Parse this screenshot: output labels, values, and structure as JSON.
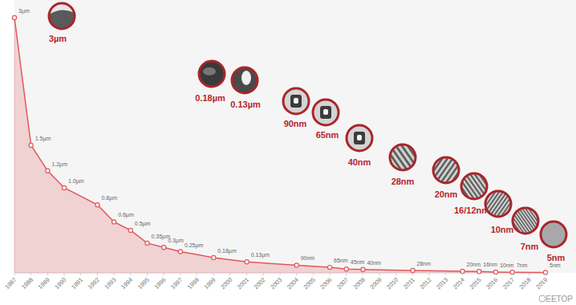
{
  "chart_data": {
    "type": "line",
    "x": [
      1987,
      1988,
      1989,
      1990,
      1992,
      1993,
      1994,
      1995,
      1996,
      1997,
      1999,
      2001,
      2004,
      2006,
      2007,
      2008,
      2011,
      2014,
      2015,
      2016,
      2017,
      2019
    ],
    "values": [
      3000,
      1500,
      1200,
      1000,
      800,
      600,
      500,
      350,
      300,
      250,
      180,
      130,
      90,
      65,
      45,
      40,
      28,
      20,
      16,
      10,
      7,
      5
    ],
    "value_labels": [
      "3µm",
      "1.5µm",
      "1.2µm",
      "1.0µm",
      "0.8µm",
      "0.6µm",
      "0.5µm",
      "0.35µm",
      "0.3µm",
      "0.25µm",
      "0.18µm",
      "0.13µm",
      "90nm",
      "65nm",
      "45nm",
      "40nm",
      "28nm",
      "20nm",
      "16nm",
      "10nm",
      "7nm",
      "5nm"
    ],
    "xlim": [
      1987,
      2019
    ],
    "xticks": [
      1987,
      1988,
      1989,
      1990,
      1991,
      1992,
      1993,
      1994,
      1995,
      1996,
      1997,
      1998,
      1999,
      2000,
      2001,
      2002,
      2003,
      2004,
      2005,
      2006,
      2007,
      2008,
      2009,
      2010,
      2011,
      2012,
      2013,
      2014,
      2015,
      2016,
      2017,
      2018,
      2019
    ],
    "ylim": [
      0,
      3000
    ],
    "tick_labels": "x",
    "grid": false,
    "data_labels": true,
    "color": "#e0585c",
    "marker": "circle",
    "annotations": [
      "3µm",
      "0.18µm",
      "0.13µm",
      "90nm",
      "65nm",
      "40nm",
      "28nm",
      "20nm",
      "16/12nm",
      "10nm",
      "7nm",
      "5nm"
    ],
    "watermark": "EETOP"
  }
}
